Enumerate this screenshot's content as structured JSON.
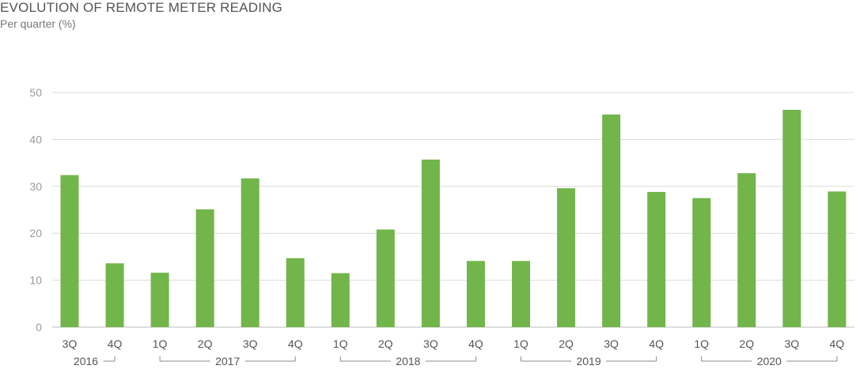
{
  "chart_data": {
    "type": "bar",
    "title": "EVOLUTION OF REMOTE METER READING",
    "subtitle": "Per quarter (%)",
    "categories": [
      "3Q",
      "4Q",
      "1Q",
      "2Q",
      "3Q",
      "4Q",
      "1Q",
      "2Q",
      "3Q",
      "4Q",
      "1Q",
      "2Q",
      "3Q",
      "4Q",
      "1Q",
      "2Q",
      "3Q",
      "4Q"
    ],
    "values": [
      32.4,
      13.6,
      11.6,
      25.1,
      31.7,
      14.7,
      11.5,
      20.8,
      35.7,
      14.1,
      14.1,
      29.6,
      45.3,
      28.8,
      27.5,
      32.8,
      46.3,
      28.9
    ],
    "year_groups": [
      {
        "label": "2016",
        "start": 0,
        "end": 1
      },
      {
        "label": "2017",
        "start": 2,
        "end": 5
      },
      {
        "label": "2018",
        "start": 6,
        "end": 9
      },
      {
        "label": "2019",
        "start": 10,
        "end": 13
      },
      {
        "label": "2020",
        "start": 14,
        "end": 17
      }
    ],
    "yticks": [
      "0",
      "10",
      "20",
      "30",
      "40",
      "50"
    ],
    "ylim": [
      0,
      50
    ],
    "bar_color": "#72b54a",
    "grid": true
  }
}
